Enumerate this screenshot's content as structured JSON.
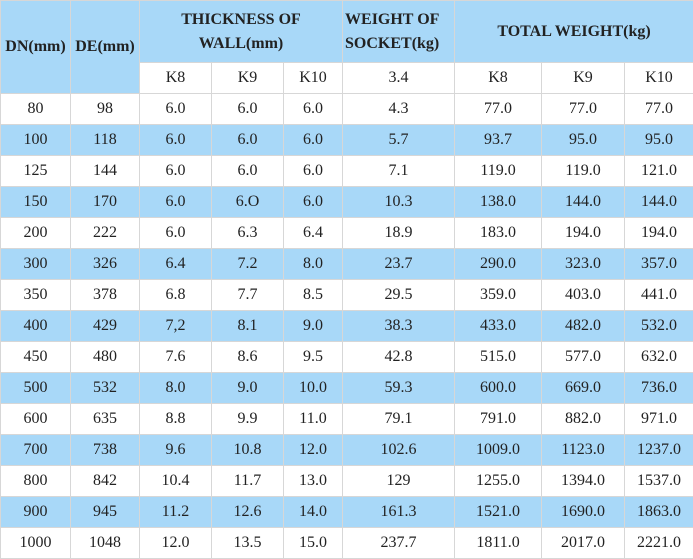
{
  "header": {
    "dn": "DN(mm)",
    "de": "DE(mm)",
    "thickness": "THICKNESS OF WALL(mm)",
    "socket_weight": "WEIGHT OF SOCKET(kg)",
    "total_weight": "TOTAL WEIGHT(kg)"
  },
  "subheader": {
    "k8": "K8",
    "k9": "K9",
    "k10": "K10",
    "socket": "3.4",
    "tk8": "K8",
    "tk9": "K9",
    "tk10": "K10"
  },
  "colors": {
    "blue_row": "#a8d8f8",
    "white_row": "#ffffff",
    "border": "#d7d7d7"
  },
  "rows": [
    {
      "dn": "80",
      "de": "98",
      "k8": "6.0",
      "k9": "6.0",
      "k10": "6.0",
      "socket": "4.3",
      "tk8": "77.0",
      "tk9": "77.0",
      "tk10": "77.0"
    },
    {
      "dn": "100",
      "de": "118",
      "k8": "6.0",
      "k9": "6.0",
      "k10": "6.0",
      "socket": "5.7",
      "tk8": "93.7",
      "tk9": "95.0",
      "tk10": "95.0"
    },
    {
      "dn": "125",
      "de": "144",
      "k8": "6.0",
      "k9": "6.0",
      "k10": "6.0",
      "socket": "7.1",
      "tk8": "119.0",
      "tk9": "119.0",
      "tk10": "121.0"
    },
    {
      "dn": "150",
      "de": "170",
      "k8": "6.0",
      "k9": "6.O",
      "k10": "6.0",
      "socket": "10.3",
      "tk8": "138.0",
      "tk9": "144.0",
      "tk10": "144.0"
    },
    {
      "dn": "200",
      "de": "222",
      "k8": "6.0",
      "k9": "6.3",
      "k10": "6.4",
      "socket": "18.9",
      "tk8": "183.0",
      "tk9": "194.0",
      "tk10": "194.0"
    },
    {
      "dn": "300",
      "de": "326",
      "k8": "6.4",
      "k9": "7.2",
      "k10": "8.0",
      "socket": "23.7",
      "tk8": "290.0",
      "tk9": "323.0",
      "tk10": "357.0"
    },
    {
      "dn": "350",
      "de": "378",
      "k8": "6.8",
      "k9": "7.7",
      "k10": "8.5",
      "socket": "29.5",
      "tk8": "359.0",
      "tk9": "403.0",
      "tk10": "441.0"
    },
    {
      "dn": "400",
      "de": "429",
      "k8": "7,2",
      "k9": "8.1",
      "k10": "9.0",
      "socket": "38.3",
      "tk8": "433.0",
      "tk9": "482.0",
      "tk10": "532.0"
    },
    {
      "dn": "450",
      "de": "480",
      "k8": "7.6",
      "k9": "8.6",
      "k10": "9.5",
      "socket": "42.8",
      "tk8": "515.0",
      "tk9": "577.0",
      "tk10": "632.0"
    },
    {
      "dn": "500",
      "de": "532",
      "k8": "8.0",
      "k9": "9.0",
      "k10": "10.0",
      "socket": "59.3",
      "tk8": "600.0",
      "tk9": "669.0",
      "tk10": "736.0"
    },
    {
      "dn": "600",
      "de": "635",
      "k8": "8.8",
      "k9": "9.9",
      "k10": "11.0",
      "socket": "79.1",
      "tk8": "791.0",
      "tk9": "882.0",
      "tk10": "971.0"
    },
    {
      "dn": "700",
      "de": "738",
      "k8": "9.6",
      "k9": "10.8",
      "k10": "12.0",
      "socket": "102.6",
      "tk8": "1009.0",
      "tk9": "1123.0",
      "tk10": "1237.0"
    },
    {
      "dn": "800",
      "de": "842",
      "k8": "10.4",
      "k9": "11.7",
      "k10": "13.0",
      "socket": "129",
      "tk8": "1255.0",
      "tk9": "1394.0",
      "tk10": "1537.0"
    },
    {
      "dn": "900",
      "de": "945",
      "k8": "11.2",
      "k9": "12.6",
      "k10": "14.0",
      "socket": "161.3",
      "tk8": "1521.0",
      "tk9": "1690.0",
      "tk10": "1863.0"
    },
    {
      "dn": "1000",
      "de": "1048",
      "k8": "12.0",
      "k9": "13.5",
      "k10": "15.0",
      "socket": "237.7",
      "tk8": "1811.0",
      "tk9": "2017.0",
      "tk10": "2221.0"
    }
  ]
}
